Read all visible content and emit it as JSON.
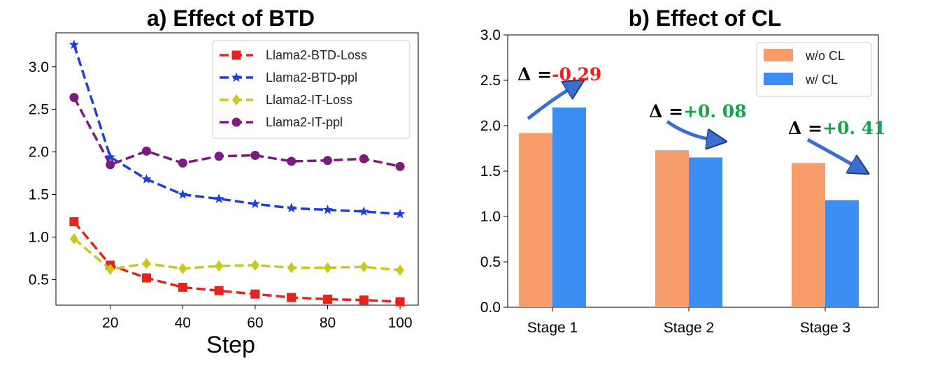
{
  "chart_data": [
    {
      "type": "line",
      "title": "a) Effect of BTD",
      "xlabel": "Step",
      "ylabel": "",
      "x": [
        10,
        20,
        30,
        40,
        50,
        60,
        70,
        80,
        90,
        100
      ],
      "xlim": [
        5,
        105
      ],
      "ylim": [
        0.2,
        3.4
      ],
      "xticks": [
        "20",
        "40",
        "60",
        "80",
        "100"
      ],
      "yticks": [
        "0.5",
        "1.0",
        "1.5",
        "2.0",
        "2.5",
        "3.0"
      ],
      "grid": false,
      "legend": "top-right",
      "series": [
        {
          "name": "Llama2-BTD-Loss",
          "color": "#e8211c",
          "marker": "square",
          "values": [
            1.18,
            0.67,
            0.52,
            0.41,
            0.37,
            0.33,
            0.29,
            0.27,
            0.26,
            0.24
          ]
        },
        {
          "name": "Llama2-BTD-ppl",
          "color": "#1f3fdb",
          "marker": "star",
          "values": [
            3.26,
            1.94,
            1.68,
            1.5,
            1.45,
            1.39,
            1.34,
            1.32,
            1.3,
            1.27
          ]
        },
        {
          "name": "Llama2-IT-Loss",
          "color": "#c8c81e",
          "marker": "diamond",
          "values": [
            0.98,
            0.62,
            0.69,
            0.63,
            0.66,
            0.67,
            0.64,
            0.64,
            0.65,
            0.61
          ]
        },
        {
          "name": "Llama2-IT-ppl",
          "color": "#7b1a7f",
          "marker": "circle",
          "values": [
            2.64,
            1.85,
            2.01,
            1.87,
            1.95,
            1.96,
            1.89,
            1.9,
            1.92,
            1.83
          ]
        }
      ]
    },
    {
      "type": "bar",
      "title": "b) Effect of CL",
      "xlabel": "",
      "ylabel": "",
      "categories": [
        "Stage 1",
        "Stage 2",
        "Stage 3"
      ],
      "ylim": [
        0.0,
        3.0
      ],
      "yticks": [
        "0.0",
        "0.5",
        "1.0",
        "1.5",
        "2.0",
        "2.5",
        "3.0"
      ],
      "grid": false,
      "legend": "top-right",
      "series": [
        {
          "name": "w/o CL",
          "color": "#f79c6b",
          "values": [
            1.92,
            1.73,
            1.59
          ]
        },
        {
          "name": "w/ CL",
          "color": "#3d8ef2",
          "values": [
            2.2,
            1.65,
            1.18
          ]
        }
      ],
      "annotations": [
        {
          "prefix": "Δ =",
          "value": "-0.29",
          "color": "#ff1a1a"
        },
        {
          "prefix": "Δ =",
          "value": "+0. 08",
          "color": "#16a64a"
        },
        {
          "prefix": "Δ =",
          "value": "+0. 41",
          "color": "#16a64a"
        }
      ]
    }
  ]
}
